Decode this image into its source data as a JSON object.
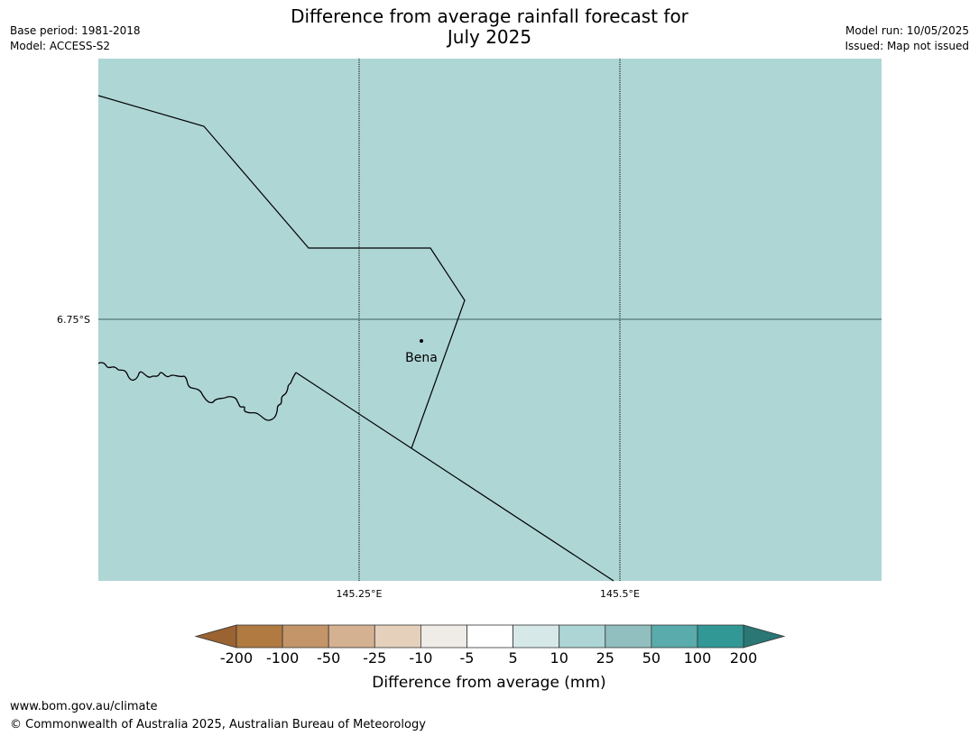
{
  "header": {
    "title_line1": "Difference from average rainfall forecast for",
    "title_line2": "July 2025",
    "base_period": "Base period: 1981-2018",
    "model": "Model: ACCESS-S2",
    "model_run": "Model run: 10/05/2025",
    "issued": "Issued: Map not issued"
  },
  "map": {
    "fill_color": "#aed6d5",
    "lat_labels": [
      "6.75°S"
    ],
    "lon_labels": [
      "145.25°E",
      "145.5°E"
    ],
    "places": [
      {
        "name": "Bena"
      }
    ]
  },
  "colorbar": {
    "title": "Difference from average (mm)",
    "ticks": [
      "-200",
      "-100",
      "-50",
      "-25",
      "-10",
      "-5",
      "5",
      "10",
      "25",
      "50",
      "100",
      "200"
    ],
    "colors": [
      "#9b6232",
      "#b07a41",
      "#c39569",
      "#d4b191",
      "#e5d0bc",
      "#efebe6",
      "#ffffff",
      "#d6e9e8",
      "#add5d5",
      "#91bfbf",
      "#5aabab",
      "#319895",
      "#2a7775"
    ]
  },
  "footer": {
    "url": "www.bom.gov.au/climate",
    "copyright": "© Commonwealth of Australia 2025, Australian Bureau of Meteorology"
  }
}
